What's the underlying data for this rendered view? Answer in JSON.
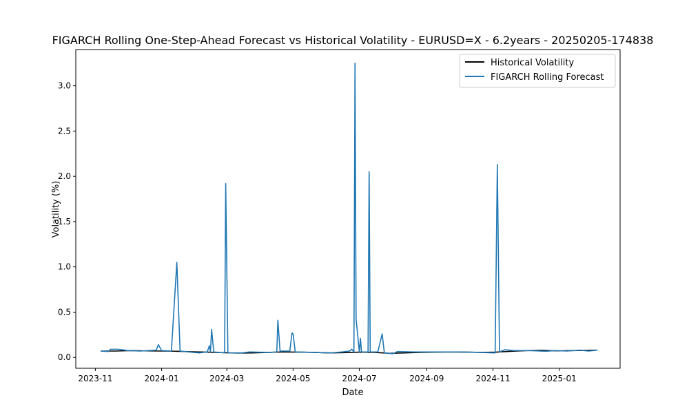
{
  "chart_data": {
    "type": "line",
    "title": "FIGARCH Rolling One-Step-Ahead Forecast vs Historical Volatility - EURUSD=X - 6.2years - 20250205-174838",
    "xlabel": "Date",
    "ylabel": "Volatility (%)",
    "xlim": [
      "2023-10-14",
      "2025-02-26"
    ],
    "ylim": [
      -0.12,
      3.4
    ],
    "x_ticks": [
      "2023-11",
      "2024-01",
      "2024-03",
      "2024-05",
      "2024-07",
      "2024-09",
      "2024-11",
      "2025-01"
    ],
    "y_ticks": [
      "0.0",
      "0.5",
      "1.0",
      "1.5",
      "2.0",
      "2.5",
      "3.0"
    ],
    "legend_placement": "top-right",
    "grid": false,
    "series": [
      {
        "name": "Historical Volatility",
        "color": "#000000",
        "points": [
          [
            "2023-11-06",
            0.07
          ],
          [
            "2023-11-20",
            0.07
          ],
          [
            "2023-12-04",
            0.075
          ],
          [
            "2023-12-18",
            0.072
          ],
          [
            "2024-01-01",
            0.07
          ],
          [
            "2024-01-15",
            0.068
          ],
          [
            "2024-01-29",
            0.062
          ],
          [
            "2024-02-12",
            0.058
          ],
          [
            "2024-02-26",
            0.052
          ],
          [
            "2024-03-11",
            0.048
          ],
          [
            "2024-03-25",
            0.05
          ],
          [
            "2024-04-08",
            0.055
          ],
          [
            "2024-04-22",
            0.06
          ],
          [
            "2024-05-06",
            0.058
          ],
          [
            "2024-05-20",
            0.055
          ],
          [
            "2024-06-03",
            0.05
          ],
          [
            "2024-06-17",
            0.052
          ],
          [
            "2024-07-01",
            0.058
          ],
          [
            "2024-07-15",
            0.055
          ],
          [
            "2024-07-29",
            0.045
          ],
          [
            "2024-08-12",
            0.05
          ],
          [
            "2024-08-26",
            0.055
          ],
          [
            "2024-09-09",
            0.058
          ],
          [
            "2024-09-23",
            0.06
          ],
          [
            "2024-10-07",
            0.058
          ],
          [
            "2024-10-21",
            0.055
          ],
          [
            "2024-11-04",
            0.058
          ],
          [
            "2024-11-18",
            0.068
          ],
          [
            "2024-12-02",
            0.075
          ],
          [
            "2024-12-16",
            0.078
          ],
          [
            "2024-12-30",
            0.072
          ],
          [
            "2025-01-13",
            0.075
          ],
          [
            "2025-01-27",
            0.078
          ],
          [
            "2025-02-05",
            0.08
          ]
        ]
      },
      {
        "name": "FIGARCH Rolling Forecast",
        "color": "#1f77b4",
        "points": [
          [
            "2023-11-06",
            0.07
          ],
          [
            "2023-11-13",
            0.065
          ],
          [
            "2023-11-15",
            0.09
          ],
          [
            "2023-11-22",
            0.09
          ],
          [
            "2023-12-01",
            0.075
          ],
          [
            "2023-12-12",
            0.07
          ],
          [
            "2023-12-20",
            0.075
          ],
          [
            "2023-12-27",
            0.08
          ],
          [
            "2023-12-29",
            0.14
          ],
          [
            "2024-01-01",
            0.075
          ],
          [
            "2024-01-10",
            0.07
          ],
          [
            "2024-01-15",
            1.05
          ],
          [
            "2024-01-18",
            0.07
          ],
          [
            "2024-01-30",
            0.055
          ],
          [
            "2024-02-05",
            0.05
          ],
          [
            "2024-02-12",
            0.06
          ],
          [
            "2024-02-14",
            0.13
          ],
          [
            "2024-02-15",
            0.06
          ],
          [
            "2024-02-16",
            0.31
          ],
          [
            "2024-02-18",
            0.06
          ],
          [
            "2024-02-28",
            0.05
          ],
          [
            "2024-02-29",
            1.92
          ],
          [
            "2024-03-02",
            0.05
          ],
          [
            "2024-03-15",
            0.05
          ],
          [
            "2024-03-22",
            0.06
          ],
          [
            "2024-04-10",
            0.055
          ],
          [
            "2024-04-16",
            0.06
          ],
          [
            "2024-04-17",
            0.41
          ],
          [
            "2024-04-19",
            0.07
          ],
          [
            "2024-04-28",
            0.07
          ],
          [
            "2024-04-30",
            0.27
          ],
          [
            "2024-05-01",
            0.26
          ],
          [
            "2024-05-03",
            0.06
          ],
          [
            "2024-05-20",
            0.055
          ],
          [
            "2024-06-05",
            0.05
          ],
          [
            "2024-06-15",
            0.06
          ],
          [
            "2024-06-22",
            0.07
          ],
          [
            "2024-06-24",
            0.09
          ],
          [
            "2024-06-26",
            0.06
          ],
          [
            "2024-06-27",
            3.25
          ],
          [
            "2024-06-28",
            0.42
          ],
          [
            "2024-07-01",
            0.06
          ],
          [
            "2024-07-02",
            0.21
          ],
          [
            "2024-07-03",
            0.06
          ],
          [
            "2024-07-09",
            0.06
          ],
          [
            "2024-07-10",
            2.05
          ],
          [
            "2024-07-11",
            0.06
          ],
          [
            "2024-07-18",
            0.06
          ],
          [
            "2024-07-22",
            0.26
          ],
          [
            "2024-07-24",
            0.05
          ],
          [
            "2024-08-01",
            0.04
          ],
          [
            "2024-08-05",
            0.065
          ],
          [
            "2024-08-20",
            0.06
          ],
          [
            "2024-09-15",
            0.06
          ],
          [
            "2024-10-01",
            0.06
          ],
          [
            "2024-10-20",
            0.055
          ],
          [
            "2024-11-03",
            0.05
          ],
          [
            "2024-11-05",
            2.13
          ],
          [
            "2024-11-07",
            0.06
          ],
          [
            "2024-11-12",
            0.085
          ],
          [
            "2024-11-20",
            0.075
          ],
          [
            "2024-12-05",
            0.075
          ],
          [
            "2024-12-20",
            0.068
          ],
          [
            "2024-12-28",
            0.075
          ],
          [
            "2025-01-08",
            0.07
          ],
          [
            "2025-01-20",
            0.08
          ],
          [
            "2025-01-28",
            0.07
          ],
          [
            "2025-02-05",
            0.08
          ]
        ]
      }
    ]
  }
}
